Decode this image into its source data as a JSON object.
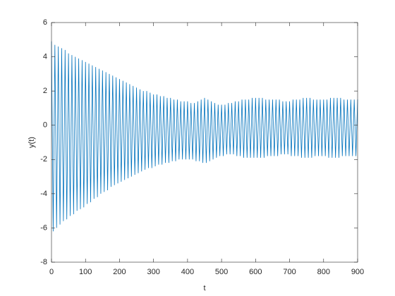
{
  "chart_data": {
    "type": "line",
    "xlabel": "t",
    "ylabel": "y(t)",
    "x": [
      0,
      5,
      10,
      15,
      20,
      25,
      30,
      35,
      40,
      45,
      50,
      55,
      60,
      65,
      70,
      75,
      80,
      85,
      90,
      95,
      100,
      105,
      110,
      115,
      120,
      125,
      130,
      135,
      140,
      145,
      150,
      155,
      160,
      165,
      170,
      175,
      180,
      185,
      190,
      195,
      200,
      205,
      210,
      215,
      220,
      225,
      230,
      235,
      240,
      245,
      250,
      255,
      260,
      265,
      270,
      275,
      280,
      285,
      290,
      295,
      300,
      305,
      310,
      315,
      320,
      325,
      330,
      335,
      340,
      345,
      350,
      355,
      360,
      365,
      370,
      375,
      380,
      385,
      390,
      395,
      400,
      405,
      410,
      415,
      420,
      425,
      430,
      435,
      440,
      445,
      450,
      455,
      460,
      465,
      470,
      475,
      480,
      485,
      490,
      495,
      500,
      505,
      510,
      515,
      520,
      525,
      530,
      535,
      540,
      545,
      550,
      555,
      560,
      565,
      570,
      575,
      580,
      585,
      590,
      595,
      600,
      605,
      610,
      615,
      620,
      625,
      630,
      635,
      640,
      645,
      650,
      655,
      660,
      665,
      670,
      675,
      680,
      685,
      690,
      695,
      700,
      705,
      710,
      715,
      720,
      725,
      730,
      735,
      740,
      745,
      750,
      755,
      760,
      765,
      770,
      775,
      780,
      785,
      790,
      795,
      800,
      805,
      810,
      815,
      820,
      825,
      830,
      835,
      840,
      845,
      850,
      855,
      860,
      865,
      870,
      875,
      880,
      885,
      890,
      895,
      900
    ],
    "series": [
      {
        "color": "#0072bd",
        "values": [
          4.9,
          -6.2,
          4.7,
          -6.0,
          4.6,
          -5.8,
          4.5,
          -5.6,
          4.4,
          -5.5,
          4.2,
          -5.3,
          4.1,
          -5.2,
          4.0,
          -5.0,
          3.9,
          -4.9,
          3.8,
          -4.8,
          3.7,
          -4.6,
          3.6,
          -4.5,
          3.5,
          -4.3,
          3.4,
          -4.2,
          3.3,
          -4.0,
          3.2,
          -3.9,
          3.1,
          -3.8,
          3.0,
          -3.6,
          2.9,
          -3.5,
          2.8,
          -3.4,
          2.7,
          -3.3,
          2.6,
          -3.2,
          2.5,
          -3.1,
          2.4,
          -3.0,
          2.3,
          -2.9,
          2.2,
          -2.8,
          2.1,
          -2.7,
          2.0,
          -2.6,
          2.0,
          -2.5,
          1.9,
          -2.5,
          1.8,
          -2.4,
          1.8,
          -2.3,
          1.7,
          -2.3,
          1.7,
          -2.2,
          1.6,
          -2.2,
          1.6,
          -2.1,
          1.5,
          -2.1,
          1.5,
          -2.0,
          1.4,
          -2.0,
          1.4,
          -2.0,
          1.4,
          -2.0,
          1.3,
          -2.0,
          1.3,
          -2.1,
          1.4,
          -2.1,
          1.5,
          -2.2,
          1.6,
          -2.2,
          1.5,
          -2.1,
          1.4,
          -2.0,
          1.3,
          -1.9,
          1.2,
          -1.8,
          1.2,
          -1.8,
          1.2,
          -1.7,
          1.3,
          -1.7,
          1.3,
          -1.7,
          1.4,
          -1.8,
          1.4,
          -1.8,
          1.5,
          -1.9,
          1.5,
          -1.9,
          1.5,
          -1.9,
          1.6,
          -1.9,
          1.6,
          -1.9,
          1.6,
          -1.9,
          1.6,
          -1.9,
          1.5,
          -1.8,
          1.5,
          -1.8,
          1.5,
          -1.8,
          1.5,
          -1.8,
          1.5,
          -1.7,
          1.4,
          -1.7,
          1.4,
          -1.7,
          1.4,
          -1.8,
          1.5,
          -1.8,
          1.5,
          -1.8,
          1.5,
          -1.9,
          1.6,
          -1.9,
          1.6,
          -1.9,
          1.6,
          -1.9,
          1.5,
          -1.8,
          1.5,
          -1.8,
          1.5,
          -1.8,
          1.5,
          -1.8,
          1.5,
          -1.9,
          1.6,
          -1.9,
          1.6,
          -1.9,
          1.6,
          -1.9,
          1.6,
          -1.8,
          1.5,
          -1.8,
          1.5,
          -1.8,
          1.5,
          -1.8,
          1.5,
          -1.8,
          1.5
        ]
      }
    ],
    "xlim": [
      0,
      900
    ],
    "xticks": [
      0,
      100,
      200,
      300,
      400,
      500,
      600,
      700,
      800,
      900
    ],
    "ylim": [
      -8,
      6
    ],
    "yticks": [
      -8,
      -6,
      -4,
      -2,
      0,
      2,
      4,
      6
    ]
  }
}
